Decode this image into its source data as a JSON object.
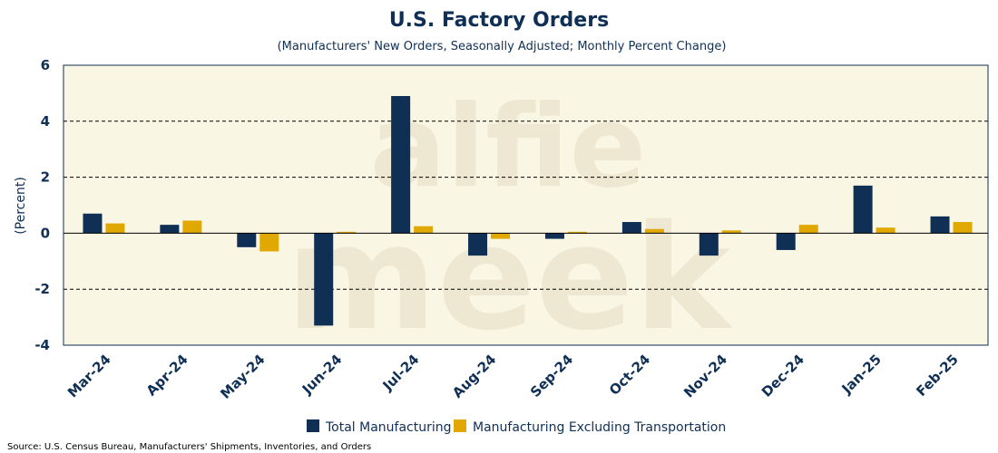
{
  "chart_data": {
    "type": "bar",
    "title": "U.S. Factory Orders",
    "subtitle": "(Manufacturers' New Orders, Seasonally Adjusted; Monthly Percent Change)",
    "ylabel": "(Percent)",
    "xlabel": "",
    "ylim": [
      -4,
      6
    ],
    "yticks": [
      -4,
      -2,
      0,
      2,
      4,
      6
    ],
    "grid": "horizontal dashed",
    "legend_position": "bottom",
    "categories": [
      "Mar-24",
      "Apr-24",
      "May-24",
      "Jun-24",
      "Jul-24",
      "Aug-24",
      "Sep-24",
      "Oct-24",
      "Nov-24",
      "Dec-24",
      "Jan-25",
      "Feb-25"
    ],
    "series": [
      {
        "name": "Total Manufacturing",
        "color": "#0f2f55",
        "values": [
          0.7,
          0.3,
          -0.5,
          -3.3,
          4.9,
          -0.8,
          -0.2,
          0.4,
          -0.8,
          -0.6,
          1.7,
          0.6
        ]
      },
      {
        "name": "Manufacturing Excluding Transportation",
        "color": "#e0a800",
        "values": [
          0.35,
          0.45,
          -0.65,
          0.05,
          0.25,
          -0.2,
          0.05,
          0.15,
          0.1,
          0.3,
          0.2,
          0.4
        ]
      }
    ],
    "source": "Source: U.S. Census Bureau, Manufacturers' Shipments, Inventories, and Orders",
    "watermark": [
      "alfie",
      "meek"
    ]
  },
  "colors": {
    "plot_background": "#faf6e4",
    "axis": "#0f2f55",
    "text": "#0f2f55"
  }
}
